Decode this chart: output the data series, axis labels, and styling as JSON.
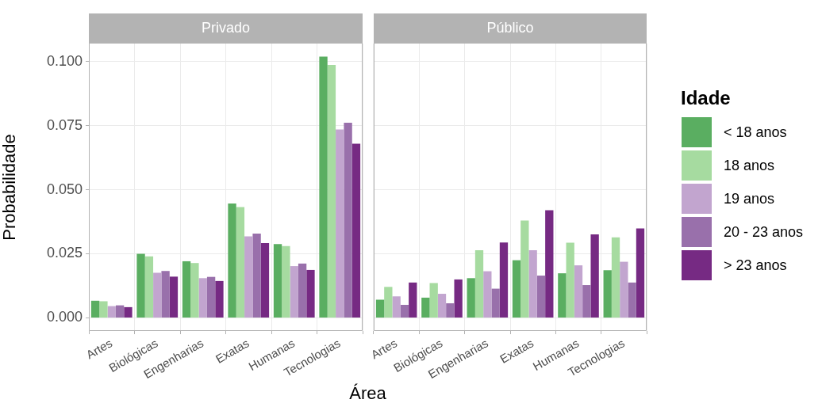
{
  "chart_data": [
    {
      "type": "bar",
      "title": "Privado",
      "ylabel": "Probabilidade",
      "xlabel": "Área",
      "categories": [
        "Artes",
        "Biológicas",
        "Engenharias",
        "Exatas",
        "Humanas",
        "Tecnologias"
      ],
      "series": [
        {
          "color": "#5aae61",
          "values": [
            0.0067,
            0.025,
            0.0221,
            0.0446,
            0.0288,
            0.1019
          ]
        },
        {
          "color": "#a6dba0",
          "values": [
            0.0065,
            0.024,
            0.0214,
            0.0432,
            0.028,
            0.0987
          ]
        },
        {
          "color": "#c2a5cf",
          "values": [
            0.0046,
            0.0176,
            0.0155,
            0.0318,
            0.0202,
            0.0735
          ]
        },
        {
          "color": "#9970ab",
          "values": [
            0.0049,
            0.0183,
            0.016,
            0.0329,
            0.0212,
            0.0761
          ]
        },
        {
          "color": "#762a83",
          "values": [
            0.0042,
            0.0161,
            0.0144,
            0.0292,
            0.0187,
            0.0679
          ]
        }
      ],
      "ylim": [
        -0.0051,
        0.107
      ],
      "yticks": [
        {
          "value": 0,
          "label": "0.000"
        },
        {
          "value": 0.025,
          "label": "0.025"
        },
        {
          "value": 0.05,
          "label": "0.050"
        },
        {
          "value": 0.075,
          "label": "0.075"
        },
        {
          "value": 0.1,
          "label": "0.100"
        }
      ],
      "grid": true
    },
    {
      "type": "bar",
      "title": "Público",
      "legend_title": "Idade",
      "legend": "right",
      "tick_labels": "x",
      "categories": [
        "Artes",
        "Biológicas",
        "Engenharias",
        "Exatas",
        "Humanas",
        "Tecnologias"
      ],
      "series": [
        {
          "name": "< 18 anos",
          "color": "#5aae61",
          "values": [
            0.0071,
            0.0079,
            0.0155,
            0.0225,
            0.0174,
            0.0186
          ]
        },
        {
          "name": "18 anos",
          "color": "#a6dba0",
          "values": [
            0.0121,
            0.0136,
            0.0264,
            0.038,
            0.0293,
            0.0314
          ]
        },
        {
          "name": "19 anos",
          "color": "#c2a5cf",
          "values": [
            0.0084,
            0.0094,
            0.0182,
            0.0264,
            0.0205,
            0.0219
          ]
        },
        {
          "name": "20 - 23 anos",
          "color": "#9970ab",
          "values": [
            0.0051,
            0.0057,
            0.0114,
            0.0165,
            0.0128,
            0.0138
          ]
        },
        {
          "name": "> 23 anos",
          "color": "#762a83",
          "values": [
            0.0138,
            0.015,
            0.0294,
            0.042,
            0.0326,
            0.0349
          ]
        }
      ],
      "ylim": [
        -0.0051,
        0.107
      ],
      "yticks": [
        {
          "value": 0,
          "label": null
        },
        {
          "value": 0.025,
          "label": null
        },
        {
          "value": 0.05,
          "label": null
        },
        {
          "value": 0.075,
          "label": null
        },
        {
          "value": 0.1,
          "label": null
        }
      ],
      "grid": true
    }
  ]
}
